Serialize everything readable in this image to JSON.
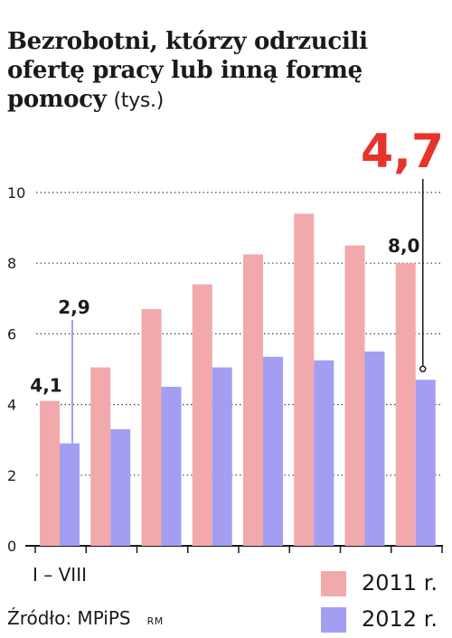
{
  "chart_data": {
    "type": "bar",
    "title": "Bezrobotni, którzy odrzucili ofertę pracy lub inną formę pomocy",
    "unit": "(tys.)",
    "period_label": "I – VIII",
    "ylim": [
      0,
      10
    ],
    "yticks": [
      "0",
      "2",
      "4",
      "6",
      "8",
      "10"
    ],
    "grid": true,
    "series": [
      {
        "name": "2011 r.",
        "color": "#f2a9ab",
        "values": [
          4.1,
          5.05,
          6.7,
          7.4,
          8.25,
          9.4,
          8.5,
          8.0
        ]
      },
      {
        "name": "2012 r.",
        "color": "#a39ef2",
        "values": [
          2.9,
          3.3,
          4.5,
          5.05,
          5.35,
          5.25,
          5.5,
          4.7
        ]
      }
    ],
    "annotations": [
      {
        "text": "4,1",
        "series": 0,
        "index": 0
      },
      {
        "text": "2,9",
        "series": 1,
        "index": 0
      },
      {
        "text": "8,0",
        "series": 0,
        "index": 7
      },
      {
        "text": "4,7",
        "series": 1,
        "index": 7,
        "highlight_color": "#e8332a"
      }
    ]
  },
  "source": "Źródło: MPiPS",
  "credit": "RM"
}
